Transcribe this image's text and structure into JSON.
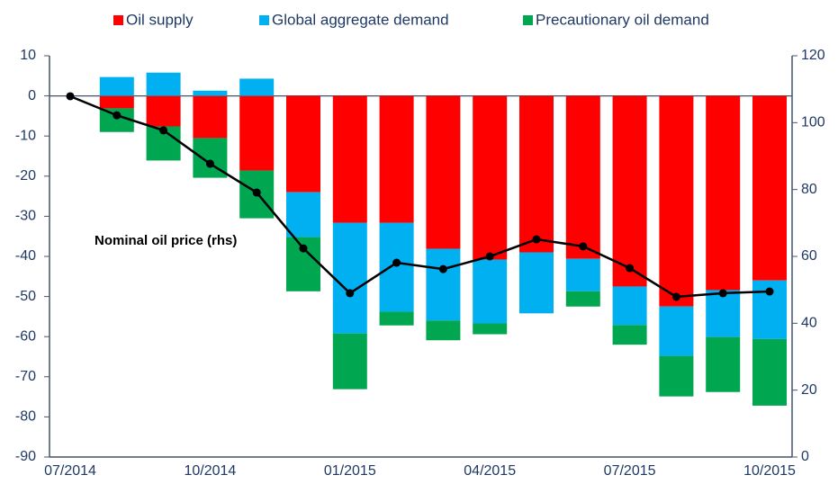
{
  "chart_data": {
    "type": "bar",
    "stacked": true,
    "categories": [
      "07/2014",
      null,
      null,
      "10/2014",
      null,
      null,
      "01/2015",
      null,
      null,
      "04/2015",
      null,
      null,
      "07/2015",
      null,
      null,
      "10/2015"
    ],
    "series": [
      {
        "name": "Oil supply",
        "color": "#ff0000",
        "values": [
          0,
          -3.1,
          -7.6,
          -10.5,
          -18.6,
          -24,
          -31.6,
          -31.6,
          -38.1,
          -40.8,
          -39,
          -40.6,
          -47.5,
          -52.5,
          -48.4,
          -46
        ]
      },
      {
        "name": "Global aggregate demand",
        "color": "#00b0f0",
        "values": [
          0,
          4.7,
          5.8,
          1.3,
          4.3,
          -11.2,
          -27.6,
          -22.2,
          -17.9,
          -15.9,
          -15.2,
          -8.1,
          -9.6,
          -12.3,
          -11.7,
          -14.6
        ]
      },
      {
        "name": "Precautionary oil demand",
        "color": "#00a650",
        "values": [
          0,
          -5.9,
          -8.5,
          -9.9,
          -11.9,
          -13.5,
          -13.9,
          -3.4,
          -4.9,
          -2.7,
          0,
          -3.8,
          -4.9,
          -10.1,
          -13.7,
          -16.6
        ]
      },
      {
        "name": "Nominal oil price (rhs)",
        "type": "line",
        "axis": "y2",
        "color": "#000000",
        "values": [
          107.9,
          102.2,
          97.7,
          87.7,
          79.1,
          62.4,
          49.0,
          58.1,
          56.2,
          60.0,
          65.1,
          63.0,
          56.5,
          47.9,
          49.0,
          49.5
        ]
      }
    ],
    "ylim": [
      -90,
      10
    ],
    "yticks": [
      10,
      0,
      -10,
      -20,
      -30,
      -40,
      -50,
      -60,
      -70,
      -80,
      -90
    ],
    "y2lim": [
      0,
      120
    ],
    "y2ticks": [
      0,
      20,
      40,
      60,
      80,
      100,
      120
    ]
  }
}
